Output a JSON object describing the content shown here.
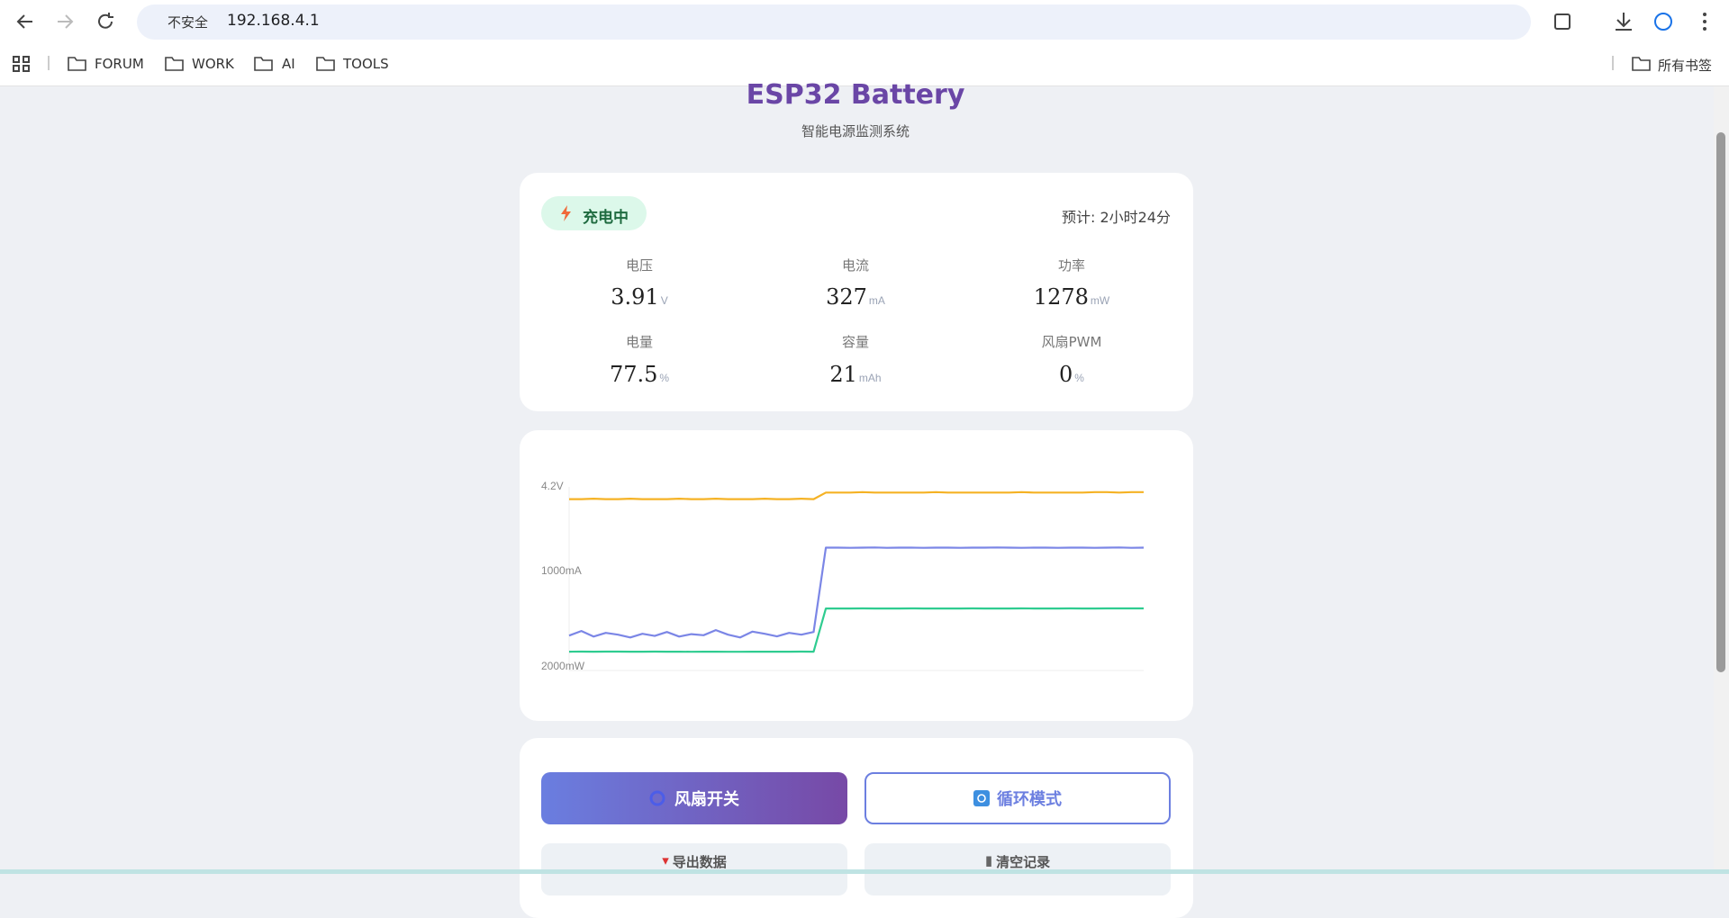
{
  "browser": {
    "security": "不安全",
    "url": "192.168.4.1",
    "bookmarks": [
      "FORUM",
      "WORK",
      "AI",
      "TOOLS"
    ],
    "all_bookmarks": "所有书签"
  },
  "header": {
    "title": "ESP32 Battery",
    "subtitle": "智能电源监测系统"
  },
  "status": {
    "badge": "充电中",
    "estimate": "预计: 2小时24分"
  },
  "metrics": [
    {
      "label": "电压",
      "value": 3.91,
      "unit": "V"
    },
    {
      "label": "电流",
      "value": 327,
      "unit": "mA"
    },
    {
      "label": "功率",
      "value": 1278,
      "unit": "mW"
    },
    {
      "label": "电量",
      "value": 77.5,
      "unit": "%"
    },
    {
      "label": "容量",
      "value": 21,
      "unit": "mAh"
    },
    {
      "label": "风扇PWM",
      "value": 0,
      "unit": "%"
    }
  ],
  "chart": {
    "type": "line",
    "axis_labels": [
      "4.2V",
      "1000mA",
      "2000mW"
    ],
    "series": [
      {
        "color": "#f5b224",
        "ylim": [
          0,
          4.2
        ],
        "values": [
          3.92,
          3.92,
          3.93,
          3.92,
          3.92,
          3.93,
          3.92,
          3.92,
          3.92,
          3.93,
          3.92,
          3.92,
          3.93,
          3.92,
          3.92,
          3.92,
          3.93,
          3.92,
          3.92,
          3.93,
          3.92,
          4.07,
          4.07,
          4.07,
          4.08,
          4.07,
          4.07,
          4.07,
          4.07,
          4.07,
          4.08,
          4.07,
          4.07,
          4.07,
          4.07,
          4.07,
          4.07,
          4.08,
          4.07,
          4.07,
          4.07,
          4.07,
          4.07,
          4.08,
          4.08,
          4.07,
          4.08,
          4.08
        ]
      },
      {
        "color": "#7b86e6",
        "ylim": [
          0,
          1000
        ],
        "values": [
          190,
          215,
          185,
          205,
          195,
          180,
          200,
          188,
          210,
          185,
          198,
          192,
          220,
          195,
          180,
          212,
          200,
          186,
          205,
          195,
          210,
          669,
          669,
          668,
          669,
          670,
          668,
          669,
          669,
          668,
          669,
          669,
          668,
          669,
          669,
          670,
          669,
          668,
          669,
          669,
          668,
          669,
          669,
          668,
          669,
          670,
          668,
          669
        ]
      },
      {
        "color": "#2fcc90",
        "ylim": [
          0,
          2000
        ],
        "values": [
          205,
          206,
          205,
          206,
          206,
          205,
          205,
          206,
          205,
          205,
          204,
          205,
          205,
          204,
          204,
          205,
          205,
          205,
          205,
          206,
          205,
          675,
          675,
          675,
          676,
          675,
          675,
          675,
          676,
          675,
          675,
          675,
          675,
          676,
          675,
          675,
          675,
          676,
          675,
          675,
          675,
          676,
          675,
          675,
          676,
          676,
          676,
          676
        ]
      }
    ]
  },
  "actions": [
    "风扇开关",
    "循环模式",
    "导出数据",
    "清空记录"
  ]
}
